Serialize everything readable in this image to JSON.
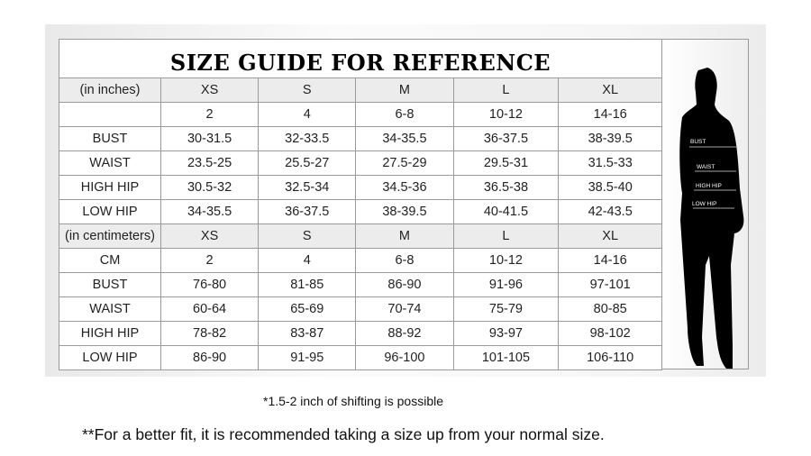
{
  "title": "SIZE GUIDE FOR REFERENCE",
  "inches": {
    "header": "(in inches)",
    "sizes": [
      "XS",
      "S",
      "M",
      "L",
      "XL"
    ],
    "rows": [
      {
        "label": "",
        "values": [
          "2",
          "4",
          "6-8",
          "10-12",
          "14-16"
        ]
      },
      {
        "label": "BUST",
        "values": [
          "30-31.5",
          "32-33.5",
          "34-35.5",
          "36-37.5",
          "38-39.5"
        ]
      },
      {
        "label": "WAIST",
        "values": [
          "23.5-25",
          "25.5-27",
          "27.5-29",
          "29.5-31",
          "31.5-33"
        ]
      },
      {
        "label": "HIGH HIP",
        "values": [
          "30.5-32",
          "32.5-34",
          "34.5-36",
          "36.5-38",
          "38.5-40"
        ]
      },
      {
        "label": "LOW HIP",
        "values": [
          "34-35.5",
          "36-37.5",
          "38-39.5",
          "40-41.5",
          "42-43.5"
        ]
      }
    ]
  },
  "centimeters": {
    "header": "(in centimeters)",
    "sizes": [
      "XS",
      "S",
      "M",
      "L",
      "XL"
    ],
    "rows": [
      {
        "label": "CM",
        "values": [
          "2",
          "4",
          "6-8",
          "10-12",
          "14-16"
        ]
      },
      {
        "label": "BUST",
        "values": [
          "76-80",
          "81-85",
          "86-90",
          "91-96",
          "97-101"
        ]
      },
      {
        "label": "WAIST",
        "values": [
          "60-64",
          "65-69",
          "70-74",
          "75-79",
          "80-85"
        ]
      },
      {
        "label": "HIGH HIP",
        "values": [
          "78-82",
          "83-87",
          "88-92",
          "93-97",
          "98-102"
        ]
      },
      {
        "label": "LOW HIP",
        "values": [
          "86-90",
          "91-95",
          "96-100",
          "101-105",
          "106-110"
        ]
      }
    ]
  },
  "figure_labels": [
    "BUST",
    "WAIST",
    "HIGH HIP",
    "LOW HIP"
  ],
  "note_shifting": "*1.5-2 inch of shifting is possible",
  "note_fit": "**For a better fit, it is recommended taking a size up from your normal size."
}
